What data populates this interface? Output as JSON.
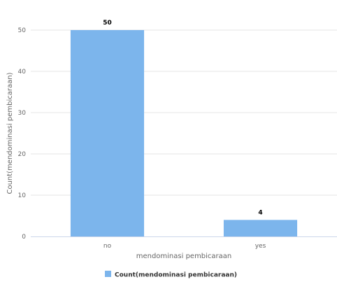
{
  "chart_data": {
    "type": "bar",
    "categories": [
      "no",
      "yes"
    ],
    "series": [
      {
        "name": "Count(mendominasi pembicaraan)",
        "values": [
          50,
          4
        ],
        "color": "#7cb5ec"
      }
    ],
    "xlabel": "mendominasi pembicaraan",
    "ylabel": "Count(mendominasi pembicaraan)",
    "ylim": [
      0,
      50
    ],
    "yticks": [
      0,
      10,
      20,
      30,
      40,
      50
    ],
    "grid": true,
    "legend_position": "bottom-center",
    "colors": {
      "grid": "#e6e6e6",
      "axis": "#ccd6eb"
    }
  }
}
